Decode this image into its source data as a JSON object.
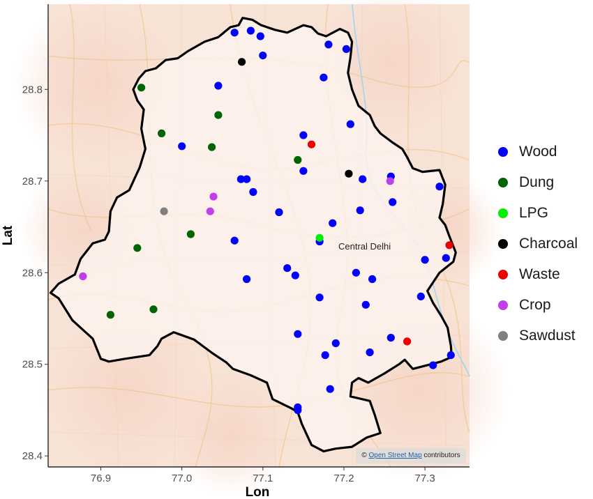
{
  "chart_data": {
    "type": "scatter",
    "xlabel": "Lon",
    "ylabel": "Lat",
    "xlim": [
      76.835,
      77.355
    ],
    "ylim": [
      28.388,
      28.893
    ],
    "x_ticks": [
      "76.9",
      "77.0",
      "77.1",
      "77.2",
      "77.3"
    ],
    "x_tick_values": [
      76.9,
      77.0,
      77.1,
      77.2,
      77.3
    ],
    "y_ticks": [
      "28.4",
      "28.5",
      "28.6",
      "28.7",
      "28.8"
    ],
    "y_tick_values": [
      28.4,
      28.5,
      28.6,
      28.7,
      28.8
    ],
    "grid": false,
    "legend_position": "right",
    "basemap_label": "Central Delhi",
    "basemap_label_position": [
      77.205,
      28.63
    ],
    "boundary": [
      [
        77.07,
        28.87
      ],
      [
        77.075,
        28.878
      ],
      [
        77.087,
        28.876
      ],
      [
        77.098,
        28.87
      ],
      [
        77.115,
        28.865
      ],
      [
        77.13,
        28.862
      ],
      [
        77.15,
        28.87
      ],
      [
        77.16,
        28.868
      ],
      [
        77.168,
        28.861
      ],
      [
        77.178,
        28.858
      ],
      [
        77.195,
        28.866
      ],
      [
        77.205,
        28.862
      ],
      [
        77.21,
        28.852
      ],
      [
        77.208,
        28.835
      ],
      [
        77.205,
        28.818
      ],
      [
        77.21,
        28.8
      ],
      [
        77.218,
        28.782
      ],
      [
        77.232,
        28.772
      ],
      [
        77.238,
        28.76
      ],
      [
        77.245,
        28.752
      ],
      [
        77.26,
        28.742
      ],
      [
        77.272,
        28.735
      ],
      [
        77.278,
        28.726
      ],
      [
        77.285,
        28.714
      ],
      [
        77.297,
        28.71
      ],
      [
        77.318,
        28.712
      ],
      [
        77.325,
        28.696
      ],
      [
        77.322,
        28.675
      ],
      [
        77.318,
        28.66
      ],
      [
        77.325,
        28.652
      ],
      [
        77.33,
        28.64
      ],
      [
        77.338,
        28.622
      ],
      [
        77.335,
        28.612
      ],
      [
        77.318,
        28.6
      ],
      [
        77.303,
        28.58
      ],
      [
        77.31,
        28.567
      ],
      [
        77.32,
        28.553
      ],
      [
        77.328,
        28.54
      ],
      [
        77.332,
        28.52
      ],
      [
        77.333,
        28.508
      ],
      [
        77.32,
        28.503
      ],
      [
        77.298,
        28.498
      ],
      [
        77.285,
        28.495
      ],
      [
        77.275,
        28.505
      ],
      [
        77.268,
        28.5
      ],
      [
        77.25,
        28.49
      ],
      [
        77.23,
        28.48
      ],
      [
        77.218,
        28.485
      ],
      [
        77.21,
        28.48
      ],
      [
        77.208,
        28.465
      ],
      [
        77.232,
        28.46
      ],
      [
        77.238,
        28.445
      ],
      [
        77.245,
        28.425
      ],
      [
        77.228,
        28.42
      ],
      [
        77.21,
        28.41
      ],
      [
        77.19,
        28.408
      ],
      [
        77.175,
        28.405
      ],
      [
        77.16,
        28.412
      ],
      [
        77.148,
        28.435
      ],
      [
        77.143,
        28.448
      ],
      [
        77.135,
        28.452
      ],
      [
        77.112,
        28.462
      ],
      [
        77.105,
        28.48
      ],
      [
        77.085,
        28.488
      ],
      [
        77.063,
        28.495
      ],
      [
        77.055,
        28.502
      ],
      [
        77.038,
        28.512
      ],
      [
        77.015,
        28.527
      ],
      [
        76.99,
        28.535
      ],
      [
        76.975,
        28.528
      ],
      [
        76.97,
        28.52
      ],
      [
        76.96,
        28.51
      ],
      [
        76.93,
        28.506
      ],
      [
        76.91,
        28.503
      ],
      [
        76.9,
        28.506
      ],
      [
        76.89,
        28.528
      ],
      [
        76.865,
        28.548
      ],
      [
        76.848,
        28.572
      ],
      [
        76.838,
        28.578
      ],
      [
        76.848,
        28.588
      ],
      [
        76.868,
        28.598
      ],
      [
        76.875,
        28.615
      ],
      [
        76.89,
        28.632
      ],
      [
        76.905,
        28.636
      ],
      [
        76.91,
        28.645
      ],
      [
        76.912,
        28.667
      ],
      [
        76.92,
        28.682
      ],
      [
        76.935,
        28.69
      ],
      [
        76.948,
        28.715
      ],
      [
        76.955,
        28.735
      ],
      [
        76.95,
        28.757
      ],
      [
        76.953,
        28.778
      ],
      [
        76.945,
        28.788
      ],
      [
        76.94,
        28.8
      ],
      [
        76.947,
        28.812
      ],
      [
        76.955,
        28.82
      ],
      [
        76.968,
        28.823
      ],
      [
        76.98,
        28.832
      ],
      [
        76.995,
        28.834
      ],
      [
        77.008,
        28.842
      ],
      [
        77.028,
        28.852
      ],
      [
        77.045,
        28.857
      ],
      [
        77.06,
        28.868
      ],
      [
        77.07,
        28.87
      ]
    ],
    "series": [
      {
        "name": "Wood",
        "color": "#0000ff",
        "points": [
          [
            77.065,
            28.862
          ],
          [
            77.085,
            28.864
          ],
          [
            77.097,
            28.858
          ],
          [
            77.1,
            28.837
          ],
          [
            77.181,
            28.849
          ],
          [
            77.203,
            28.844
          ],
          [
            77.175,
            28.813
          ],
          [
            77.045,
            28.804
          ],
          [
            77.208,
            28.762
          ],
          [
            77.15,
            28.75
          ],
          [
            77.0,
            28.738
          ],
          [
            77.15,
            28.711
          ],
          [
            77.073,
            28.702
          ],
          [
            77.08,
            28.702
          ],
          [
            77.088,
            28.688
          ],
          [
            77.223,
            28.702
          ],
          [
            77.258,
            28.705
          ],
          [
            77.318,
            28.694
          ],
          [
            77.26,
            28.677
          ],
          [
            77.22,
            28.668
          ],
          [
            77.12,
            28.666
          ],
          [
            77.186,
            28.654
          ],
          [
            77.065,
            28.635
          ],
          [
            77.17,
            28.634
          ],
          [
            77.326,
            28.616
          ],
          [
            77.3,
            28.614
          ],
          [
            77.13,
            28.605
          ],
          [
            77.14,
            28.597
          ],
          [
            77.08,
            28.593
          ],
          [
            77.215,
            28.6
          ],
          [
            77.235,
            28.593
          ],
          [
            77.295,
            28.574
          ],
          [
            77.17,
            28.573
          ],
          [
            77.227,
            28.565
          ],
          [
            77.143,
            28.533
          ],
          [
            77.258,
            28.529
          ],
          [
            77.19,
            28.523
          ],
          [
            77.232,
            28.513
          ],
          [
            77.177,
            28.51
          ],
          [
            77.332,
            28.51
          ],
          [
            77.31,
            28.499
          ],
          [
            77.183,
            28.473
          ],
          [
            77.143,
            28.453
          ],
          [
            77.143,
            28.45
          ]
        ]
      },
      {
        "name": "Dung",
        "color": "#006400",
        "points": [
          [
            76.95,
            28.802
          ],
          [
            77.045,
            28.772
          ],
          [
            76.975,
            28.752
          ],
          [
            77.037,
            28.737
          ],
          [
            77.143,
            28.723
          ],
          [
            77.011,
            28.642
          ],
          [
            76.945,
            28.627
          ],
          [
            76.965,
            28.56
          ],
          [
            76.912,
            28.554
          ]
        ]
      },
      {
        "name": "LPG",
        "color": "#00ee00",
        "points": [
          [
            77.17,
            28.638
          ]
        ]
      },
      {
        "name": "Charcoal",
        "color": "#000000",
        "points": [
          [
            77.074,
            28.83
          ],
          [
            77.206,
            28.708
          ]
        ]
      },
      {
        "name": "Waste",
        "color": "#ee0000",
        "points": [
          [
            77.16,
            28.74
          ],
          [
            77.33,
            28.63
          ],
          [
            77.278,
            28.525
          ]
        ]
      },
      {
        "name": "Crop",
        "color": "#bf40e8",
        "points": [
          [
            76.878,
            28.596
          ],
          [
            77.035,
            28.667
          ],
          [
            77.039,
            28.683
          ],
          [
            77.257,
            28.7
          ]
        ]
      },
      {
        "name": "Sawdust",
        "color": "#808080",
        "points": [
          [
            76.978,
            28.667
          ]
        ]
      }
    ]
  },
  "attribution": {
    "prefix": "©",
    "link_text": "Open Street Map",
    "suffix": "contributors"
  }
}
